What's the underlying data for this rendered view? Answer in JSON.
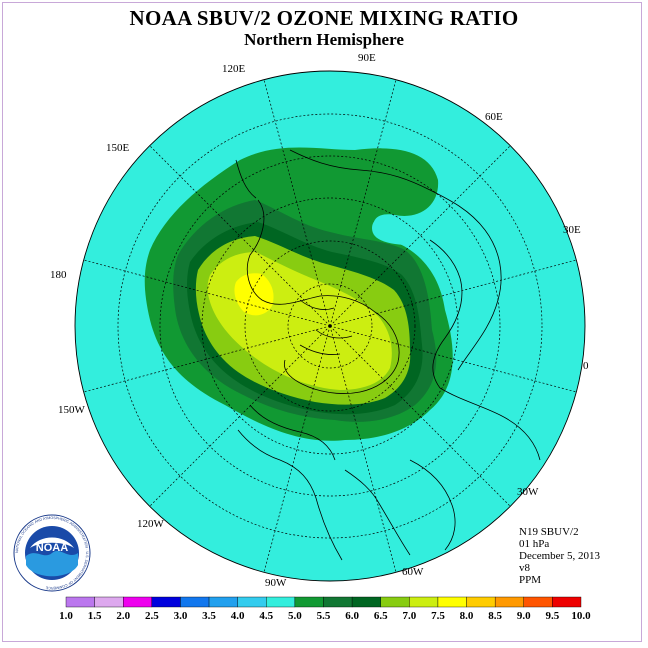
{
  "title": "NOAA SBUV/2 OZONE MIXING RATIO",
  "subtitle": "Northern Hemisphere",
  "longitude_labels": [
    {
      "key": "120E",
      "text": "120E"
    },
    {
      "key": "90E",
      "text": "90E"
    },
    {
      "key": "60E",
      "text": "60E"
    },
    {
      "key": "30E",
      "text": "30E"
    },
    {
      "key": "0",
      "text": "0"
    },
    {
      "key": "30W",
      "text": "30W"
    },
    {
      "key": "60W",
      "text": "60W"
    },
    {
      "key": "90W",
      "text": "90W"
    },
    {
      "key": "120W",
      "text": "120W"
    },
    {
      "key": "150W",
      "text": "150W"
    },
    {
      "key": "180",
      "text": "180"
    },
    {
      "key": "150E",
      "text": "150E"
    }
  ],
  "info": {
    "instrument": "N19 SBUV/2",
    "level": "01 hPa",
    "date": "December 5, 2013",
    "version": "v8",
    "units": "PPM"
  },
  "logo": {
    "text": "NOAA",
    "ring_text": "NATIONAL OCEANIC AND ATMOSPHERIC ADMINISTRATION · U.S. DEPARTMENT OF COMMERCE"
  },
  "colorbar": {
    "labels": [
      "1.0",
      "1.5",
      "2.0",
      "2.5",
      "3.0",
      "3.5",
      "4.0",
      "4.5",
      "5.0",
      "5.5",
      "6.0",
      "6.5",
      "7.0",
      "7.5",
      "8.0",
      "8.5",
      "9.0",
      "9.5",
      "10.0"
    ],
    "colors": [
      "#bb77ee",
      "#dda8ee",
      "#ee00ee",
      "#0000dd",
      "#1177ee",
      "#22a0ee",
      "#33ccee",
      "#33eedd",
      "#119933",
      "#117733",
      "#006622",
      "#88cc11",
      "#ccee11",
      "#ffff00",
      "#ffcc00",
      "#ff9900",
      "#ff5500",
      "#ee0000",
      "#885533"
    ]
  },
  "colors": {
    "background_field": "#33eedd",
    "coast": "#000000"
  }
}
